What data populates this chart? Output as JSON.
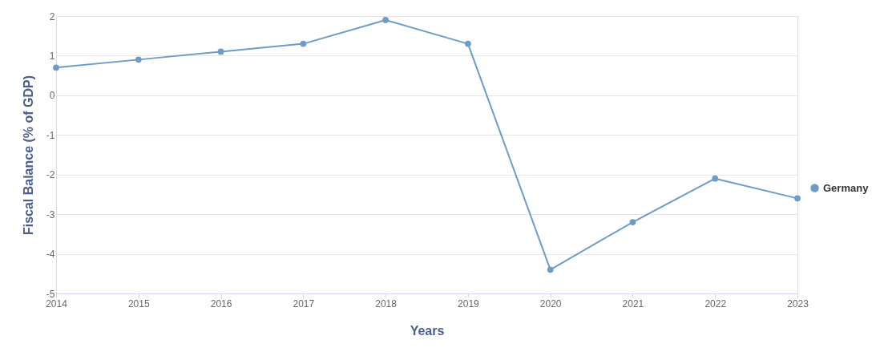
{
  "chart_data": {
    "type": "line",
    "xlabel": "Years",
    "ylabel": "Fiscal Balance (% of GDP)",
    "x": [
      2014,
      2015,
      2016,
      2017,
      2018,
      2019,
      2020,
      2021,
      2022,
      2023
    ],
    "series": [
      {
        "name": "Germany",
        "color": "#6f9cc4",
        "values": [
          0.7,
          0.9,
          1.1,
          1.3,
          1.9,
          1.3,
          -4.4,
          -3.2,
          -2.1,
          -2.6
        ]
      }
    ],
    "xlim": [
      2014,
      2023
    ],
    "xticks": [
      2014,
      2015,
      2016,
      2017,
      2018,
      2019,
      2020,
      2021,
      2022,
      2023
    ],
    "ylim": [
      -5,
      2
    ],
    "yticks": [
      -5,
      -4,
      -3,
      -2,
      -1,
      0,
      1,
      2
    ],
    "grid": "y",
    "legend": "right",
    "marker": "circle",
    "line_style": "solid"
  }
}
